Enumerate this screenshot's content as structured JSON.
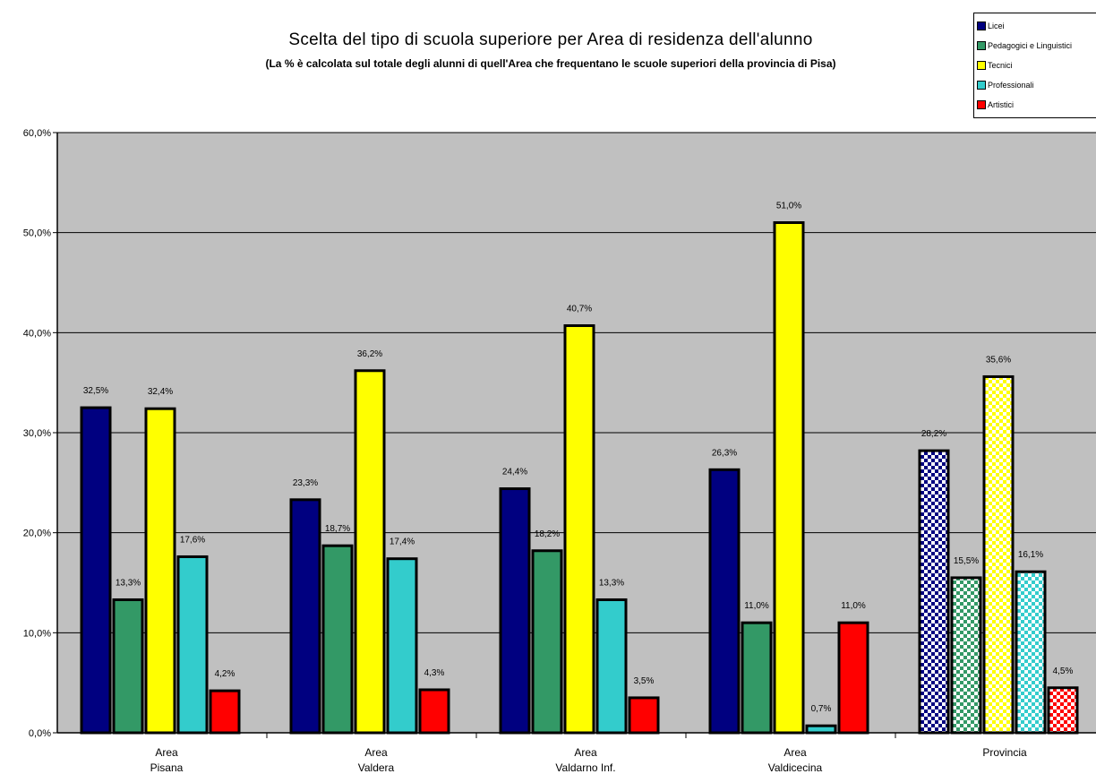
{
  "chart_data": {
    "type": "bar",
    "title": "Scelta del tipo di scuola superiore per Area di residenza dell'alunno",
    "subtitle": "(La % è calcolata sul totale degli alunni di quell'Area che frequentano le scuole superiori della provincia di Pisa)",
    "categories": [
      [
        "Area",
        "Pisana"
      ],
      [
        "Area",
        "Valdera"
      ],
      [
        "Area",
        "Valdarno Inf."
      ],
      [
        "Area",
        "Valdicecina"
      ],
      [
        "Provincia"
      ]
    ],
    "series": [
      {
        "name": "Licei",
        "color": "#000080",
        "values": [
          32.5,
          23.3,
          24.4,
          26.3,
          28.2
        ],
        "labels": [
          "32,5%",
          "23,3%",
          "24,4%",
          "26,3%",
          "28,2%"
        ]
      },
      {
        "name": "Pedagogici e Linguistici",
        "color": "#339966",
        "values": [
          13.3,
          18.7,
          18.2,
          11.0,
          15.5
        ],
        "labels": [
          "13,3%",
          "18,7%",
          "18,2%",
          "11,0%",
          "15,5%"
        ]
      },
      {
        "name": "Tecnici",
        "color": "#ffff00",
        "values": [
          32.4,
          36.2,
          40.7,
          51.0,
          35.6
        ],
        "labels": [
          "32,4%",
          "36,2%",
          "40,7%",
          "51,0%",
          "35,6%"
        ]
      },
      {
        "name": "Professionali",
        "color": "#33cccc",
        "values": [
          17.6,
          17.4,
          13.3,
          0.7,
          16.1
        ],
        "labels": [
          "17,6%",
          "17,4%",
          "13,3%",
          "0,7%",
          "16,1%"
        ]
      },
      {
        "name": "Artistici",
        "color": "#ff0000",
        "values": [
          4.2,
          4.3,
          3.5,
          11.0,
          4.5
        ],
        "labels": [
          "4,2%",
          "4,3%",
          "3,5%",
          "11,0%",
          "4,5%"
        ]
      }
    ],
    "pattern_category_index": 4,
    "ylim": [
      0,
      60
    ],
    "yticks": [
      0,
      10,
      20,
      30,
      40,
      50,
      60
    ],
    "ytick_labels": [
      "0,0%",
      "10,0%",
      "20,0%",
      "30,0%",
      "40,0%",
      "50,0%",
      "60,0%"
    ],
    "grid": true,
    "plot_background": "#c0c0c0",
    "legend_position": "top-right"
  }
}
